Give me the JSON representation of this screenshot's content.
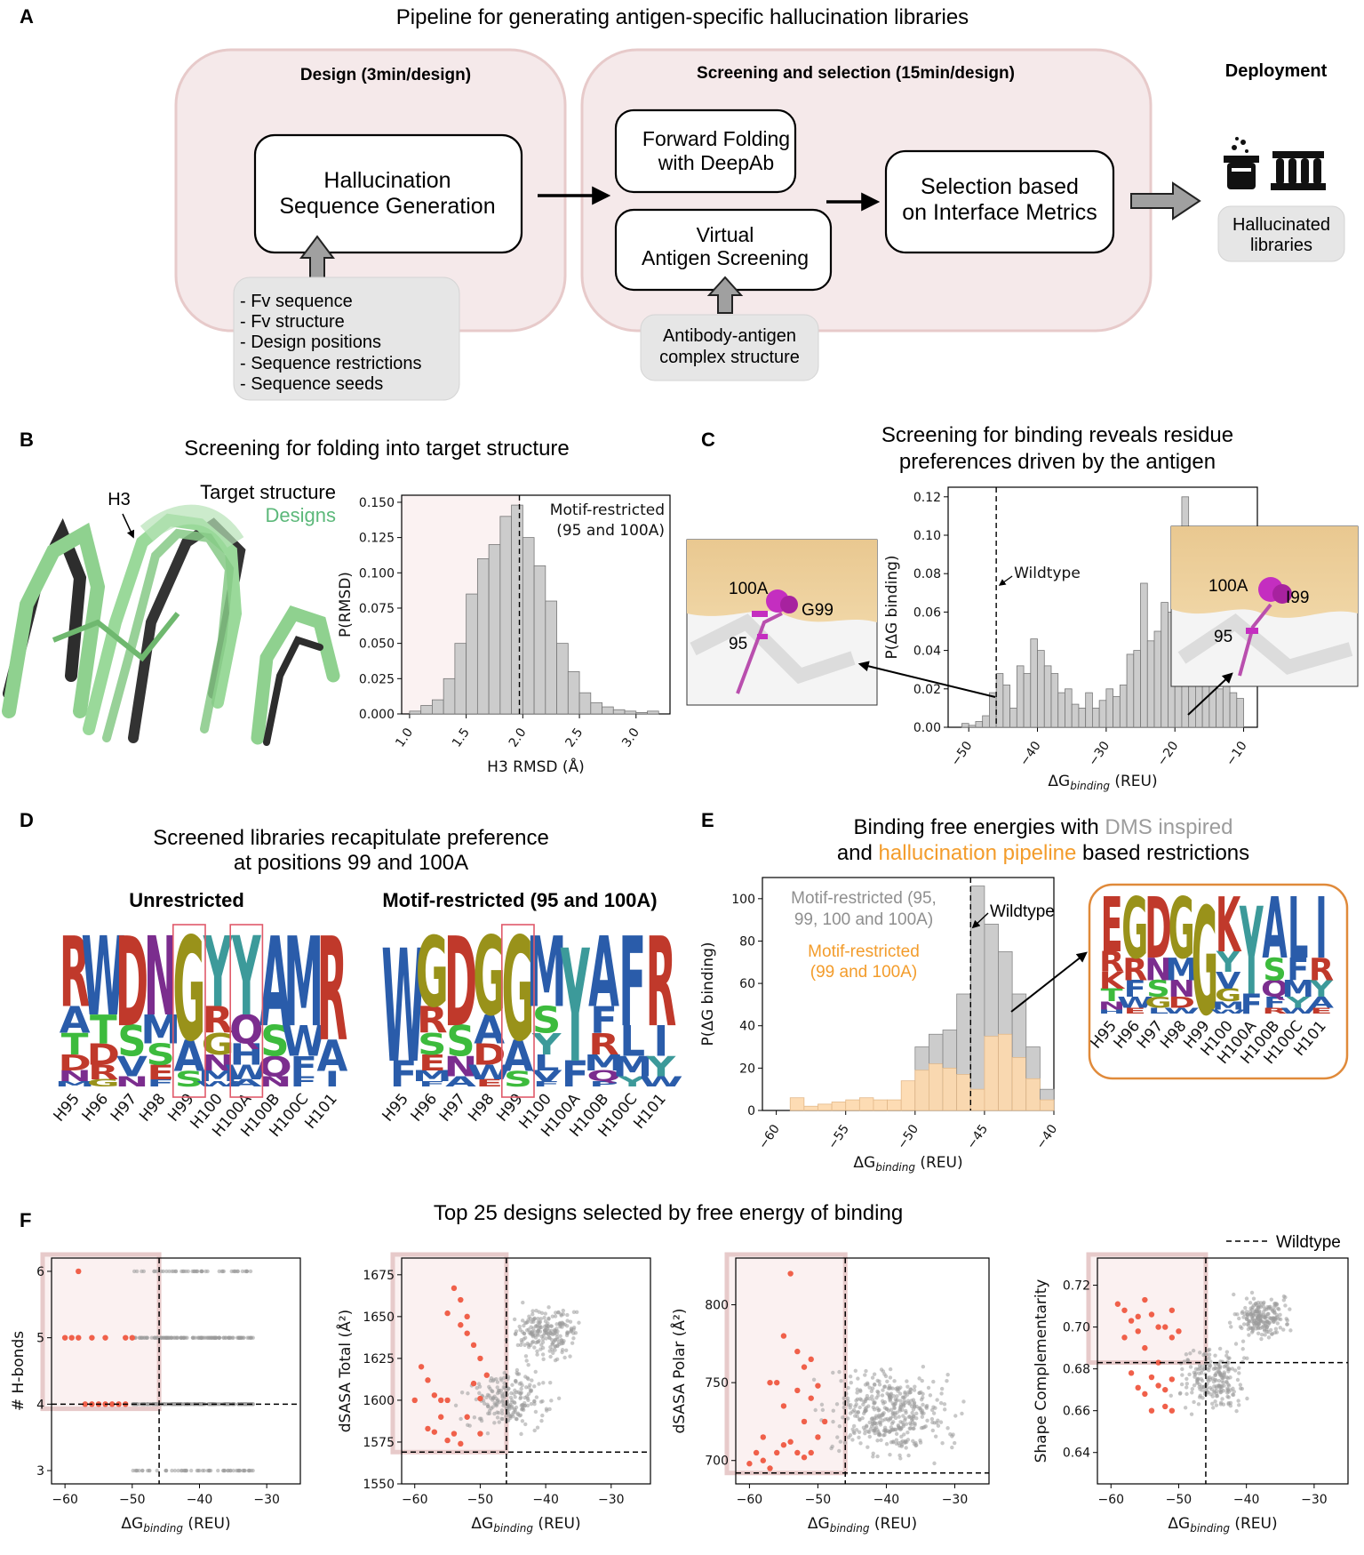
{
  "panels": {
    "A": {
      "label": "A",
      "title": "Pipeline for generating antigen-specific hallucination libraries",
      "design_header": "Design (3min/design)",
      "screening_header": "Screening and selection (15min/design)",
      "deployment_header": "Deployment",
      "hallucination_box": [
        "Hallucination",
        "Sequence Generation"
      ],
      "forward_folding_box": [
        "Forward Folding",
        "with DeepAb"
      ],
      "virtual_box": [
        "Virtual",
        "Antigen Screening"
      ],
      "selection_box": [
        "Selection based",
        "on Interface Metrics"
      ],
      "inputs": [
        "- Fv sequence",
        "- Fv structure",
        "- Design positions",
        "- Sequence restrictions",
        "- Sequence seeds"
      ],
      "complex_box": [
        "Antibody-antigen",
        "complex structure"
      ],
      "libraries_box": [
        "Hallucinated",
        "libraries"
      ],
      "icons": [
        "beaker-icon",
        "test-tube-rack-icon"
      ]
    },
    "B": {
      "label": "B",
      "title": "Screening for folding into target structure",
      "h3_label": "H3",
      "legend_target": "Target structure",
      "legend_designs": "Designs",
      "colors": {
        "target": "#333333",
        "designs": "#8fd18f",
        "designs_text": "#5cb87a"
      }
    },
    "C": {
      "label": "C",
      "title": [
        "Screening for binding reveals residue",
        "preferences driven by the antigen"
      ],
      "left_inset": {
        "labels": [
          "100A",
          "G99",
          "95"
        ]
      },
      "right_inset": {
        "labels": [
          "100A",
          "I99",
          "95"
        ]
      }
    },
    "D": {
      "label": "D",
      "title": [
        "Screened libraries recapitulate preference",
        "at positions 99 and 100A"
      ],
      "logo_left": {
        "title": "Unrestricted",
        "positions": [
          "H95",
          "H96",
          "H97",
          "H98",
          "H99",
          "H100",
          "H100A",
          "H100B",
          "H100C",
          "H101"
        ],
        "columns": [
          [
            "R",
            "A",
            "T",
            "D",
            "N",
            "M"
          ],
          [
            "W",
            "T",
            "D",
            "R",
            "G"
          ],
          [
            "D",
            "S",
            "V",
            "N"
          ],
          [
            "N",
            "M",
            "S",
            "E",
            "F"
          ],
          [
            "G",
            "A",
            "S"
          ],
          [
            "Y",
            "R",
            "G",
            "N",
            "M",
            "W"
          ],
          [
            "Y",
            "Q",
            "H",
            "W",
            "A"
          ],
          [
            "A",
            "S",
            "Q",
            "N"
          ],
          [
            "M",
            "W",
            "F",
            "F"
          ],
          [
            "R",
            "A",
            "I"
          ]
        ],
        "highlighted": [
          "H99",
          "H100A"
        ]
      },
      "logo_right": {
        "title": "Motif-restricted (95 and 100A)",
        "positions": [
          "H95",
          "H96",
          "H97",
          "H98",
          "H99",
          "H100",
          "H100A",
          "H100B",
          "H100C",
          "H101"
        ],
        "columns": [
          [
            "W",
            "F"
          ],
          [
            "G",
            "R",
            "S",
            "E",
            "M",
            "F"
          ],
          [
            "D",
            "S",
            "N",
            "A"
          ],
          [
            "G",
            "A",
            "D",
            "W",
            "E"
          ],
          [
            "G",
            "A",
            "S"
          ],
          [
            "M",
            "S",
            "Y",
            "L",
            "V",
            "F"
          ],
          [
            "Y",
            "F"
          ],
          [
            "A",
            "F",
            "R",
            "M",
            "Q",
            "P"
          ],
          [
            "F",
            "L",
            "M",
            "Y"
          ],
          [
            "R",
            "I",
            "Y",
            "W"
          ]
        ],
        "highlighted": [
          "H99"
        ]
      },
      "letter_colors": {
        "R": "#c0392b",
        "K": "#c0392b",
        "H": "#2a5caa",
        "D": "#c0392b",
        "E": "#c0392b",
        "N": "#7b2d8e",
        "Q": "#7b2d8e",
        "S": "#3dbb3d",
        "T": "#3dbb3d",
        "G": "#99921a",
        "A": "#2a5caa",
        "V": "#2a5caa",
        "L": "#2a5caa",
        "I": "#2a5caa",
        "M": "#2a5caa",
        "F": "#2a5caa",
        "W": "#2a5caa",
        "Y": "#3c9a9a",
        "C": "#3dbb3d",
        "P": "#2a5caa"
      }
    },
    "E": {
      "label": "E",
      "title_line1_prefix": "Binding free energies with ",
      "title_line1_highlight": "DMS inspired",
      "title_line2_prefix": "and ",
      "title_line2_highlight": "hallucination pipeline",
      "title_line2_suffix": " based restrictions",
      "highlight_colors": {
        "dms": "#9c9c9c",
        "halluc": "#f39c2b"
      },
      "legend_gray": [
        "Motif-restricted (95,",
        "99, 100 and 100A)"
      ],
      "legend_orange": [
        "Motif-restricted",
        "(99 and 100A)"
      ],
      "wildtype_label": "Wildtype",
      "inset_logo": {
        "positions": [
          "H95",
          "H96",
          "H97",
          "H98",
          "H99",
          "H100",
          "H100A",
          "H100B",
          "H100C",
          "H101"
        ],
        "columns": [
          [
            "E",
            "R",
            "K",
            "T",
            "N",
            "H"
          ],
          [
            "G",
            "R",
            "F",
            "W",
            "E"
          ],
          [
            "D",
            "N",
            "S",
            "G",
            "L"
          ],
          [
            "G",
            "M",
            "N",
            "D",
            "W"
          ],
          [
            "G"
          ],
          [
            "K",
            "Y",
            "V",
            "G",
            "M",
            "W"
          ],
          [
            "Y",
            "F"
          ],
          [
            "A",
            "S",
            "Q",
            "F",
            "R"
          ],
          [
            "L",
            "F",
            "M",
            "Y",
            "W"
          ],
          [
            "I",
            "R",
            "Y",
            "A",
            "E"
          ]
        ]
      }
    },
    "F": {
      "label": "F",
      "title": "Top 25 designs selected by free energy of binding",
      "wildtype_legend": "Wildtype",
      "point_colors": {
        "selected": "#f0604a",
        "other": "#999999"
      }
    }
  },
  "chart_data": [
    {
      "id": "B-histogram",
      "type": "bar",
      "xlabel": "H3 RMSD (Å)",
      "ylabel": "P(RMSD)",
      "xlim": [
        0.93,
        3.3
      ],
      "ylim": [
        0,
        0.155
      ],
      "xticks": [
        1.0,
        1.5,
        2.0,
        2.5,
        3.0
      ],
      "yticks": [
        0.0,
        0.025,
        0.05,
        0.075,
        0.1,
        0.125,
        0.15
      ],
      "bin_width": 0.1,
      "bins_left": [
        1.0,
        1.1,
        1.2,
        1.3,
        1.4,
        1.5,
        1.6,
        1.7,
        1.8,
        1.9,
        2.0,
        2.1,
        2.2,
        2.3,
        2.4,
        2.5,
        2.6,
        2.7,
        2.8,
        2.9,
        3.0,
        3.1
      ],
      "values": [
        0.002,
        0.006,
        0.01,
        0.025,
        0.05,
        0.085,
        0.11,
        0.12,
        0.14,
        0.148,
        0.125,
        0.105,
        0.08,
        0.05,
        0.03,
        0.015,
        0.008,
        0.005,
        0.003,
        0.002,
        0.001,
        0.002
      ],
      "vline": 1.97,
      "annotation": [
        "Motif-restricted",
        "(95 and 100A)"
      ],
      "shaded_region": [
        0.93,
        1.97
      ]
    },
    {
      "id": "C-histogram",
      "type": "bar",
      "xlabel": "ΔG_binding (REU)",
      "ylabel": "P(ΔG_binding)",
      "xlim": [
        -53,
        -8
      ],
      "ylim": [
        0,
        0.125
      ],
      "xticks": [
        -50,
        -40,
        -30,
        -20,
        -10
      ],
      "yticks": [
        0.0,
        0.02,
        0.04,
        0.06,
        0.08,
        0.1,
        0.12
      ],
      "bin_width": 1,
      "bins_left": [
        -51,
        -50,
        -49,
        -48,
        -47,
        -46,
        -45,
        -44,
        -43,
        -42,
        -41,
        -40,
        -39,
        -38,
        -37,
        -36,
        -35,
        -34,
        -33,
        -32,
        -31,
        -30,
        -29,
        -28,
        -27,
        -26,
        -25,
        -24,
        -23,
        -22,
        -21,
        -20,
        -19,
        -18,
        -17,
        -16,
        -15,
        -14,
        -13,
        -12,
        -11
      ],
      "values": [
        0.002,
        0.001,
        0.003,
        0.006,
        0.018,
        0.028,
        0.022,
        0.01,
        0.032,
        0.028,
        0.046,
        0.04,
        0.032,
        0.028,
        0.018,
        0.02,
        0.012,
        0.01,
        0.018,
        0.01,
        0.014,
        0.02,
        0.016,
        0.022,
        0.038,
        0.04,
        0.075,
        0.045,
        0.05,
        0.065,
        0.06,
        0.1,
        0.12,
        0.045,
        0.042,
        0.03,
        0.025,
        0.02,
        0.022,
        0.018,
        0.015
      ],
      "vline": -46,
      "vline_label": "Wildtype"
    },
    {
      "id": "E-histogram",
      "type": "bar",
      "xlabel": "ΔG_binding (REU)",
      "ylabel": "P(ΔG_binding)",
      "xlim": [
        -61,
        -40
      ],
      "ylim": [
        0,
        110
      ],
      "xticks": [
        -60,
        -55,
        -50,
        -45,
        -40
      ],
      "yticks": [
        0,
        20,
        40,
        60,
        80,
        100
      ],
      "bin_width": 1,
      "bins_left": [
        -60,
        -59,
        -58,
        -57,
        -56,
        -55,
        -54,
        -53,
        -52,
        -51,
        -50,
        -49,
        -48,
        -47,
        -46,
        -45,
        -44,
        -43,
        -42,
        -41
      ],
      "series": [
        {
          "name": "Motif-restricted (95, 99, 100 and 100A)",
          "color": "#cccccc",
          "values": [
            0,
            0,
            0,
            0,
            0,
            0,
            0,
            0,
            0,
            0,
            30,
            36,
            38,
            55,
            106,
            88,
            75,
            55,
            30,
            10
          ]
        },
        {
          "name": "Motif-restricted (99 and 100A)",
          "color": "#fdd9ae",
          "values": [
            0,
            6,
            2,
            3,
            4,
            5,
            6,
            5,
            5,
            14,
            19,
            22,
            20,
            17,
            10,
            35,
            36,
            25,
            15,
            5
          ]
        }
      ],
      "vline": -46
    },
    {
      "id": "F1",
      "type": "scatter",
      "xlabel": "ΔG_binding (REU)",
      "ylabel": "# H-bonds",
      "xlim": [
        -62,
        -25
      ],
      "ylim": [
        2.8,
        6.2
      ],
      "xticks": [
        -60,
        -50,
        -40,
        -30
      ],
      "yticks": [
        3,
        4,
        5,
        6
      ],
      "hline": 4,
      "vline": -46,
      "selected": [
        [
          -58,
          6
        ],
        [
          -60,
          5
        ],
        [
          -59,
          5
        ],
        [
          -58,
          5
        ],
        [
          -56,
          5
        ],
        [
          -54,
          5
        ],
        [
          -51,
          5
        ],
        [
          -50,
          5
        ],
        [
          -57,
          4
        ],
        [
          -56,
          4
        ],
        [
          -55,
          4
        ],
        [
          -54,
          4
        ],
        [
          -53,
          4
        ],
        [
          -52,
          4
        ],
        [
          -51,
          4
        ]
      ]
    },
    {
      "id": "F2",
      "type": "scatter",
      "xlabel": "ΔG_binding (REU)",
      "ylabel": "dSASA Total (Å²)",
      "xlim": [
        -62,
        -24
      ],
      "ylim": [
        1550,
        1685
      ],
      "xticks": [
        -60,
        -50,
        -40,
        -30
      ],
      "yticks": [
        1550,
        1575,
        1600,
        1625,
        1650,
        1675
      ],
      "hline": 1569,
      "vline": -46,
      "selected": [
        [
          -59,
          1620
        ],
        [
          -58,
          1612
        ],
        [
          -57,
          1603
        ],
        [
          -56,
          1600
        ],
        [
          -55,
          1600
        ],
        [
          -54,
          1667
        ],
        [
          -53,
          1660
        ],
        [
          -52,
          1650
        ],
        [
          -52,
          1640
        ],
        [
          -51,
          1633
        ],
        [
          -50,
          1625
        ],
        [
          -50,
          1601
        ],
        [
          -54,
          1580
        ],
        [
          -55,
          1576
        ],
        [
          -53,
          1574
        ],
        [
          -57,
          1581
        ],
        [
          -58,
          1583
        ],
        [
          -52,
          1590
        ],
        [
          -51,
          1610
        ],
        [
          -55,
          1652
        ],
        [
          -53,
          1645
        ],
        [
          -56,
          1590
        ],
        [
          -60,
          1600
        ],
        [
          -49,
          1615
        ],
        [
          -50,
          1580
        ]
      ]
    },
    {
      "id": "F3",
      "type": "scatter",
      "xlabel": "ΔG_binding (REU)",
      "ylabel": "dSASA Polar (Å²)",
      "xlim": [
        -62,
        -25
      ],
      "ylim": [
        685,
        830
      ],
      "xticks": [
        -60,
        -50,
        -40,
        -30
      ],
      "yticks": [
        700,
        750,
        800
      ],
      "hline": 692,
      "vline": -46,
      "selected": [
        [
          -54,
          820
        ],
        [
          -55,
          780
        ],
        [
          -53,
          770
        ],
        [
          -51,
          765
        ],
        [
          -56,
          750
        ],
        [
          -57,
          750
        ],
        [
          -55,
          735
        ],
        [
          -58,
          715
        ],
        [
          -52,
          760
        ],
        [
          -53,
          745
        ],
        [
          -59,
          705
        ],
        [
          -58,
          700
        ],
        [
          -56,
          705
        ],
        [
          -55,
          710
        ],
        [
          -54,
          712
        ],
        [
          -53,
          705
        ],
        [
          -52,
          702
        ],
        [
          -51,
          705
        ],
        [
          -50,
          715
        ],
        [
          -49,
          725
        ],
        [
          -57,
          695
        ],
        [
          -60,
          698
        ],
        [
          -51,
          740
        ],
        [
          -50,
          748
        ],
        [
          -52,
          725
        ]
      ]
    },
    {
      "id": "F4",
      "type": "scatter",
      "xlabel": "ΔG_binding (REU)",
      "ylabel": "Shape Complementarity",
      "xlim": [
        -62,
        -25
      ],
      "ylim": [
        0.625,
        0.733
      ],
      "xticks": [
        -60,
        -50,
        -40,
        -30
      ],
      "yticks": [
        0.64,
        0.66,
        0.68,
        0.7,
        0.72
      ],
      "hline": 0.683,
      "vline": -46,
      "selected": [
        [
          -59,
          0.711
        ],
        [
          -58,
          0.708
        ],
        [
          -57,
          0.703
        ],
        [
          -55,
          0.713
        ],
        [
          -54,
          0.706
        ],
        [
          -53,
          0.7
        ],
        [
          -52,
          0.7
        ],
        [
          -51,
          0.708
        ],
        [
          -51,
          0.695
        ],
        [
          -56,
          0.698
        ],
        [
          -57,
          0.678
        ],
        [
          -56,
          0.671
        ],
        [
          -55,
          0.668
        ],
        [
          -54,
          0.676
        ],
        [
          -53,
          0.672
        ],
        [
          -52,
          0.67
        ],
        [
          -52,
          0.662
        ],
        [
          -51,
          0.675
        ],
        [
          -54,
          0.66
        ],
        [
          -55,
          0.69
        ],
        [
          -58,
          0.695
        ],
        [
          -56,
          0.705
        ],
        [
          -53,
          0.683
        ],
        [
          -50,
          0.698
        ],
        [
          -51,
          0.66
        ]
      ]
    }
  ]
}
